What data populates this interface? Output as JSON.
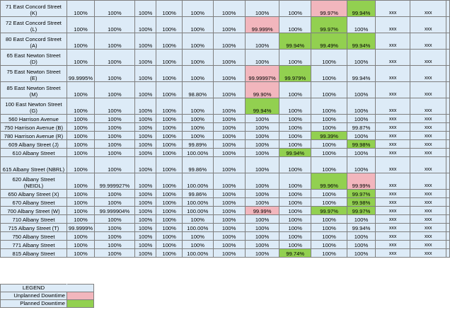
{
  "colors": {
    "cell_bg": "#ddebf7",
    "unplanned": "#f2b6bd",
    "planned": "#92d050",
    "grid": "#7f7f7f"
  },
  "rows": [
    {
      "name": [
        "71 East Concord Street",
        "(K)"
      ],
      "cells": [
        "100%",
        "100%",
        "100%",
        "100%",
        "100%",
        "100%",
        "100%",
        "100%",
        "99.97%",
        "99.94%",
        "xxx",
        "xxx"
      ],
      "colors": [
        "",
        "",
        "",
        "",
        "",
        "",
        "",
        "",
        "unplanned",
        "planned",
        "",
        ""
      ]
    },
    {
      "name": [
        "72 East Concord Street",
        "(L)"
      ],
      "cells": [
        "100%",
        "100%",
        "100%",
        "100%",
        "100%",
        "100%",
        "99.999%",
        "100%",
        "99.97%",
        "100%",
        "xxx",
        "xxx"
      ],
      "colors": [
        "",
        "",
        "",
        "",
        "",
        "",
        "unplanned",
        "",
        "planned",
        "",
        "",
        ""
      ]
    },
    {
      "name": [
        "80 East Concord Street",
        "(A)"
      ],
      "cells": [
        "100%",
        "100%",
        "100%",
        "100%",
        "100%",
        "100%",
        "100%",
        "99.94%",
        "99.49%",
        "99.94%",
        "xxx",
        "xxx"
      ],
      "colors": [
        "",
        "",
        "",
        "",
        "",
        "",
        "",
        "planned",
        "planned",
        "planned",
        "",
        ""
      ]
    },
    {
      "name": [
        "65 East Newton Street",
        "(D)"
      ],
      "cells": [
        "100%",
        "100%",
        "100%",
        "100%",
        "100%",
        "100%",
        "100%",
        "100%",
        "100%",
        "100%",
        "xxx",
        "xxx"
      ],
      "colors": [
        "",
        "",
        "",
        "",
        "",
        "",
        "",
        "",
        "",
        "",
        "",
        ""
      ]
    },
    {
      "name": [
        "75 East Newton Street",
        "(E)"
      ],
      "cells": [
        "99.9995%",
        "100%",
        "100%",
        "100%",
        "100%",
        "100%",
        "99.99997%",
        "99.979%",
        "100%",
        "99.94%",
        "xxx",
        "xxx"
      ],
      "colors": [
        "",
        "",
        "",
        "",
        "",
        "",
        "unplanned",
        "planned",
        "",
        "",
        "",
        ""
      ]
    },
    {
      "name": [
        "85 East Newton Street",
        "(M)"
      ],
      "cells": [
        "100%",
        "100%",
        "100%",
        "100%",
        "98.80%",
        "100%",
        "99.90%",
        "100%",
        "100%",
        "100%",
        "xxx",
        "xxx"
      ],
      "colors": [
        "",
        "",
        "",
        "",
        "",
        "",
        "unplanned",
        "",
        "",
        "",
        "",
        ""
      ]
    },
    {
      "name": [
        "100 East Newton Street",
        "(G)"
      ],
      "cells": [
        "100%",
        "100%",
        "100%",
        "100%",
        "100%",
        "100%",
        "99.94%",
        "100%",
        "100%",
        "100%",
        "xxx",
        "xxx"
      ],
      "colors": [
        "",
        "",
        "",
        "",
        "",
        "",
        "planned",
        "",
        "",
        "",
        "",
        ""
      ]
    },
    {
      "name": [
        "560 Harrison Avenue"
      ],
      "cells": [
        "100%",
        "100%",
        "100%",
        "100%",
        "100%",
        "100%",
        "100%",
        "100%",
        "100%",
        "100%",
        "xxx",
        "xxx"
      ],
      "colors": [
        "",
        "",
        "",
        "",
        "",
        "",
        "",
        "",
        "",
        "",
        "",
        ""
      ]
    },
    {
      "name": [
        "750 Harrison Avenue (B)"
      ],
      "cells": [
        "100%",
        "100%",
        "100%",
        "100%",
        "100%",
        "100%",
        "100%",
        "100%",
        "100%",
        "99.87%",
        "xxx",
        "xxx"
      ],
      "colors": [
        "",
        "",
        "",
        "",
        "",
        "",
        "",
        "",
        "",
        "",
        "",
        ""
      ]
    },
    {
      "name": [
        "780 Harrison Avenue (R)"
      ],
      "cells": [
        "100%",
        "100%",
        "100%",
        "100%",
        "100%",
        "100%",
        "100%",
        "100%",
        "99.39%",
        "100%",
        "xxx",
        "xxx"
      ],
      "colors": [
        "",
        "",
        "",
        "",
        "",
        "",
        "",
        "",
        "planned",
        "",
        "",
        ""
      ]
    },
    {
      "name": [
        "609 Albany Street (J)"
      ],
      "cells": [
        "100%",
        "100%",
        "100%",
        "100%",
        "99.89%",
        "100%",
        "100%",
        "100%",
        "100%",
        "99.98%",
        "xxx",
        "xxx"
      ],
      "colors": [
        "",
        "",
        "",
        "",
        "",
        "",
        "",
        "",
        "",
        "planned",
        "",
        ""
      ]
    },
    {
      "name": [
        "610 Albany Street"
      ],
      "cells": [
        "100%",
        "100%",
        "100%",
        "100%",
        "100.00%",
        "100%",
        "100%",
        "99.94%",
        "100%",
        "100%",
        "xxx",
        "xxx"
      ],
      "colors": [
        "",
        "",
        "",
        "",
        "",
        "",
        "",
        "planned",
        "",
        "",
        "",
        ""
      ]
    },
    {
      "name": [
        "615 Albany Street (NBRL)"
      ],
      "cells": [
        "100%",
        "100%",
        "100%",
        "100%",
        "99.86%",
        "100%",
        "100%",
        "100%",
        "100%",
        "100%",
        "xxx",
        "xxx"
      ],
      "colors": [
        "",
        "",
        "",
        "",
        "",
        "",
        "",
        "",
        "",
        "",
        "",
        ""
      ]
    },
    {
      "name": [
        "620 Albany Street",
        "(NEIDL)"
      ],
      "cells": [
        "100%",
        "99.999927%",
        "100%",
        "100%",
        "100.00%",
        "100%",
        "100%",
        "100%",
        "99.96%",
        "99.99%",
        "xxx",
        "xxx"
      ],
      "colors": [
        "",
        "",
        "",
        "",
        "",
        "",
        "",
        "",
        "planned",
        "unplanned",
        "",
        ""
      ]
    },
    {
      "name": [
        "650 Albany Street (X)"
      ],
      "cells": [
        "100%",
        "100%",
        "100%",
        "100%",
        "99.86%",
        "100%",
        "100%",
        "100%",
        "100%",
        "99.97%",
        "xxx",
        "xxx"
      ],
      "colors": [
        "",
        "",
        "",
        "",
        "",
        "",
        "",
        "",
        "",
        "planned",
        "",
        ""
      ]
    },
    {
      "name": [
        "670 Albany Street"
      ],
      "cells": [
        "100%",
        "100%",
        "100%",
        "100%",
        "100.00%",
        "100%",
        "100%",
        "100%",
        "100%",
        "99.98%",
        "xxx",
        "xxx"
      ],
      "colors": [
        "",
        "",
        "",
        "",
        "",
        "",
        "",
        "",
        "",
        "planned",
        "",
        ""
      ]
    },
    {
      "name": [
        "700 Albany Street (W)"
      ],
      "cells": [
        "100%",
        "99.999904%",
        "100%",
        "100%",
        "100.00%",
        "100%",
        "99.99%",
        "100%",
        "99.97%",
        "99.97%",
        "xxx",
        "xxx"
      ],
      "colors": [
        "",
        "",
        "",
        "",
        "",
        "",
        "unplanned",
        "",
        "planned",
        "planned",
        "",
        ""
      ]
    },
    {
      "name": [
        "710 Albany Street"
      ],
      "cells": [
        "100%",
        "100%",
        "100%",
        "100%",
        "100%",
        "100%",
        "100%",
        "100%",
        "100%",
        "100%",
        "xxx",
        "xxx"
      ],
      "colors": [
        "",
        "",
        "",
        "",
        "",
        "",
        "",
        "",
        "",
        "",
        "",
        ""
      ]
    },
    {
      "name": [
        "715 Albany Street (T)"
      ],
      "cells": [
        "99.9999%",
        "100%",
        "100%",
        "100%",
        "100.00%",
        "100%",
        "100%",
        "100%",
        "100%",
        "99.94%",
        "xxx",
        "xxx"
      ],
      "colors": [
        "",
        "",
        "",
        "",
        "",
        "",
        "",
        "",
        "",
        "",
        "",
        ""
      ]
    },
    {
      "name": [
        "750 Albany Street"
      ],
      "cells": [
        "100%",
        "100%",
        "100%",
        "100%",
        "100%",
        "100%",
        "100%",
        "100%",
        "100%",
        "100%",
        "xxx",
        "xxx"
      ],
      "colors": [
        "",
        "",
        "",
        "",
        "",
        "",
        "",
        "",
        "",
        "",
        "",
        ""
      ]
    },
    {
      "name": [
        "771 Albany Street"
      ],
      "cells": [
        "100%",
        "100%",
        "100%",
        "100%",
        "100%",
        "100%",
        "100%",
        "100%",
        "100%",
        "100%",
        "xxx",
        "xxx"
      ],
      "colors": [
        "",
        "",
        "",
        "",
        "",
        "",
        "",
        "",
        "",
        "",
        "",
        ""
      ]
    },
    {
      "name": [
        "815 Albany Street"
      ],
      "cells": [
        "100%",
        "100%",
        "100%",
        "100%",
        "100.00%",
        "100%",
        "100%",
        "99.74%",
        "100%",
        "100%",
        "xxx",
        "xxx"
      ],
      "colors": [
        "",
        "",
        "",
        "",
        "",
        "",
        "",
        "planned",
        "",
        "",
        "",
        ""
      ]
    }
  ],
  "legend": {
    "title": "LEGEND",
    "unplanned_label": "Unplanned Downtime",
    "planned_label": "Planned Downtime"
  }
}
